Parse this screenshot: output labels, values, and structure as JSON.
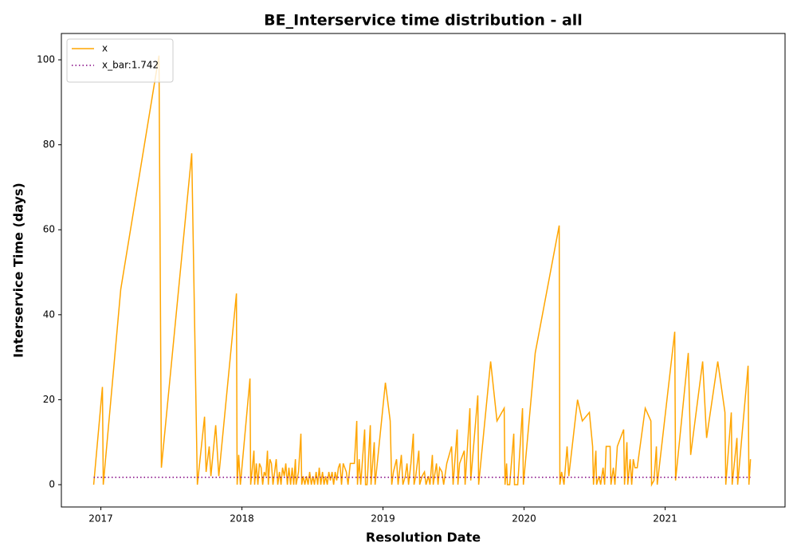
{
  "chart_data": {
    "type": "line",
    "title": "BE_Interservice time distribution - all",
    "xlabel": "Resolution Date",
    "ylabel": "Interservice Time (days)",
    "legend": "upper left",
    "grid": false,
    "xlim": [
      2016.72,
      2021.85
    ],
    "ylim": [
      -5.25,
      106.2
    ],
    "xticks": [
      2017,
      2018,
      2019,
      2020,
      2021
    ],
    "yticks": [
      0,
      20,
      40,
      60,
      80,
      100
    ],
    "series": [
      {
        "name": "x",
        "color": "#ffa500",
        "dash": "solid",
        "x": [
          2016.949,
          2017.011,
          2017.017,
          2017.141,
          2017.412,
          2017.429,
          2017.644,
          2017.684,
          2017.735,
          2017.746,
          2017.768,
          2017.78,
          2017.814,
          2017.836,
          2017.961,
          2017.966,
          2017.977,
          2017.989,
          2018.057,
          2018.062,
          2018.074,
          2018.085,
          2018.09,
          2018.102,
          2018.113,
          2018.124,
          2018.136,
          2018.147,
          2018.158,
          2018.17,
          2018.181,
          2018.187,
          2018.198,
          2018.209,
          2018.22,
          2018.232,
          2018.243,
          2018.254,
          2018.266,
          2018.277,
          2018.288,
          2018.3,
          2018.311,
          2018.322,
          2018.333,
          2018.345,
          2018.356,
          2018.367,
          2018.379,
          2018.384,
          2018.401,
          2018.418,
          2018.424,
          2018.435,
          2018.446,
          2018.458,
          2018.469,
          2018.48,
          2018.492,
          2018.503,
          2018.514,
          2018.526,
          2018.537,
          2018.548,
          2018.559,
          2018.571,
          2018.582,
          2018.593,
          2018.605,
          2018.616,
          2018.627,
          2018.639,
          2018.65,
          2018.661,
          2018.672,
          2018.684,
          2018.695,
          2018.706,
          2018.718,
          2018.729,
          2018.74,
          2018.752,
          2018.768,
          2018.797,
          2018.814,
          2018.819,
          2018.831,
          2018.842,
          2018.87,
          2018.876,
          2018.887,
          2018.91,
          2018.915,
          2018.938,
          2018.944,
          2019.017,
          2019.051,
          2019.062,
          2019.074,
          2019.096,
          2019.107,
          2019.13,
          2019.141,
          2019.158,
          2019.17,
          2019.181,
          2019.198,
          2019.215,
          2019.22,
          2019.232,
          2019.254,
          2019.26,
          2019.277,
          2019.294,
          2019.305,
          2019.322,
          2019.333,
          2019.35,
          2019.356,
          2019.379,
          2019.39,
          2019.401,
          2019.418,
          2019.43,
          2019.452,
          2019.486,
          2019.497,
          2019.526,
          2019.531,
          2019.543,
          2019.576,
          2019.582,
          2019.616,
          2019.622,
          2019.672,
          2019.678,
          2019.763,
          2019.808,
          2019.859,
          2019.865,
          2019.876,
          2019.882,
          2019.898,
          2019.927,
          2019.932,
          2019.955,
          2019.989,
          2019.995,
          2020.079,
          2020.249,
          2020.254,
          2020.266,
          2020.283,
          2020.305,
          2020.317,
          2020.379,
          2020.413,
          2020.463,
          2020.486,
          2020.492,
          2020.509,
          2020.514,
          2020.531,
          2020.543,
          2020.56,
          2020.571,
          2020.582,
          2020.61,
          2020.616,
          2020.633,
          2020.644,
          2020.661,
          2020.706,
          2020.712,
          2020.729,
          2020.735,
          2020.752,
          2020.763,
          2020.774,
          2020.786,
          2020.802,
          2020.859,
          2020.899,
          2020.904,
          2020.921,
          2020.938,
          2020.944,
          2021.068,
          2021.074,
          2021.164,
          2021.181,
          2021.266,
          2021.294,
          2021.373,
          2021.424,
          2021.43,
          2021.469,
          2021.475,
          2021.509,
          2021.514,
          2021.588,
          2021.594,
          2021.605
        ],
        "values": [
          0,
          23,
          0,
          46,
          101,
          4,
          78,
          0,
          16,
          3,
          9,
          2,
          14,
          2,
          45,
          0,
          7,
          0,
          25,
          0,
          4,
          8,
          0,
          5,
          0,
          5,
          4,
          0,
          3,
          2,
          8,
          0,
          6,
          5,
          0,
          3,
          6,
          0,
          3,
          0,
          4,
          2,
          5,
          0,
          4,
          0,
          4,
          0,
          6,
          0,
          3,
          12,
          0,
          2,
          0,
          2,
          0,
          3,
          0,
          2,
          0,
          3,
          0,
          4,
          0,
          3,
          0,
          2,
          0,
          3,
          1,
          3,
          0,
          3,
          1,
          4,
          5,
          0,
          5,
          4,
          3,
          0,
          5,
          5,
          15,
          0,
          6,
          0,
          13,
          0,
          0,
          14,
          0,
          10,
          0,
          24,
          15,
          0,
          3,
          6,
          0,
          7,
          0,
          2,
          5,
          0,
          5,
          12,
          0,
          2,
          8,
          0,
          2,
          3,
          0,
          2,
          0,
          7,
          0,
          5,
          0,
          4,
          3,
          0,
          5,
          9,
          0,
          13,
          0,
          5,
          8,
          0,
          18,
          1,
          21,
          0,
          29,
          15,
          18,
          0,
          5,
          0,
          0,
          12,
          0,
          0,
          18,
          0,
          31,
          61,
          0,
          3,
          0,
          9,
          2,
          20,
          15,
          17,
          9,
          0,
          8,
          0,
          2,
          0,
          4,
          0,
          9,
          9,
          0,
          4,
          0,
          9,
          13,
          0,
          10,
          0,
          6,
          0,
          6,
          4,
          4,
          18,
          15,
          0,
          1,
          9,
          0,
          36,
          1,
          31,
          7,
          29,
          11,
          29,
          17,
          0,
          17,
          0,
          11,
          0,
          28,
          0,
          6
        ]
      },
      {
        "name": "x_bar:1.742",
        "color": "#800080",
        "dash": "dotted",
        "x": [
          2016.949,
          2021.605
        ],
        "values": [
          1.742,
          1.742
        ]
      }
    ]
  }
}
